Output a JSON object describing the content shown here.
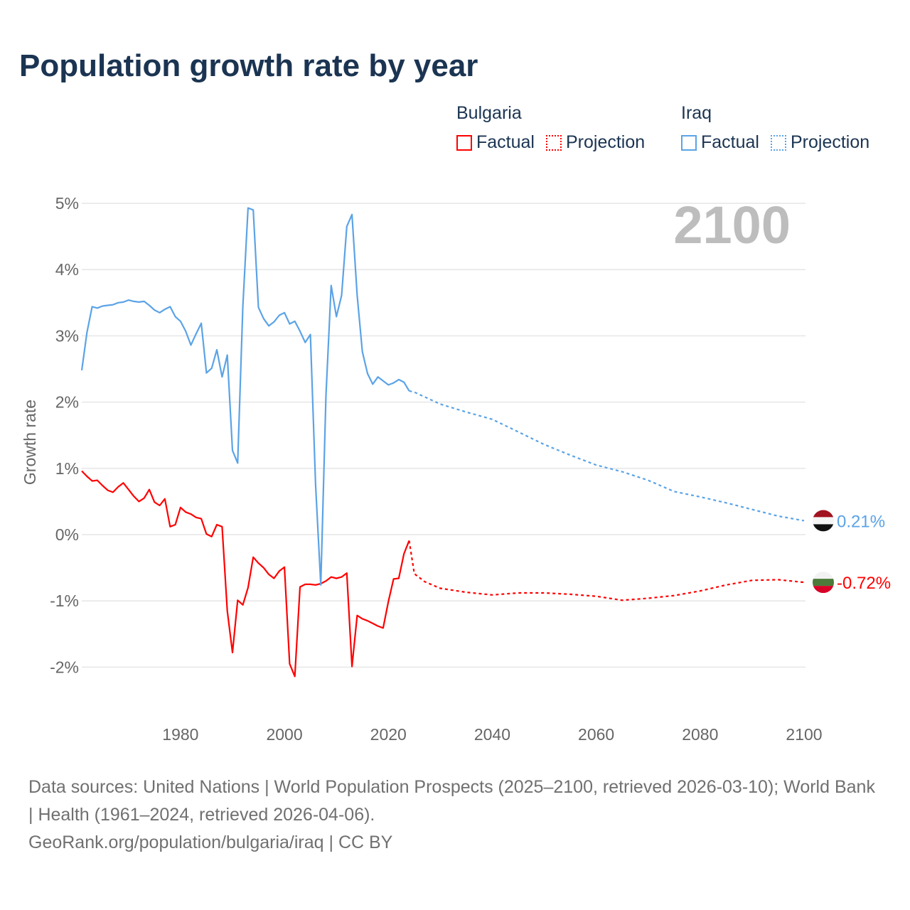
{
  "title": "Population growth rate by year",
  "legend": {
    "groups": [
      {
        "name": "Bulgaria",
        "factual": "Factual",
        "projection": "Projection",
        "color": "#ff0000"
      },
      {
        "name": "Iraq",
        "factual": "Factual",
        "projection": "Projection",
        "color": "#5ba3e6"
      }
    ]
  },
  "year_label": "2100",
  "footer": {
    "sources": "Data sources: United Nations | World Population Prospects (2025–2100, retrieved 2026-03-10); World Bank | Health (1961–2024, retrieved 2026-04-06).",
    "credit": "GeoRank.org/population/bulgaria/iraq | CC BY"
  },
  "chart_data": {
    "type": "line",
    "title": "Population growth rate by year",
    "xlabel": "",
    "ylabel": "Growth rate",
    "xlim": [
      1961,
      2100
    ],
    "ylim": [
      -2.5,
      5.2
    ],
    "xticks": [
      1980,
      2000,
      2020,
      2040,
      2060,
      2080,
      2100
    ],
    "xtick_labels": [
      "1980",
      "2000",
      "2020",
      "2040",
      "2060",
      "2080",
      "2100"
    ],
    "yticks": [
      -2,
      -1,
      0,
      1,
      2,
      3,
      4,
      5
    ],
    "ytick_labels": [
      "-2%",
      "-1%",
      "0%",
      "1%",
      "2%",
      "3%",
      "4%",
      "5%"
    ],
    "grid": true,
    "legend_position": "top-right",
    "series": [
      {
        "name": "Bulgaria",
        "color": "#ff0000",
        "end_label": "-0.72%",
        "factual": {
          "x": [
            1961,
            1962,
            1963,
            1964,
            1965,
            1966,
            1967,
            1968,
            1969,
            1970,
            1971,
            1972,
            1973,
            1974,
            1975,
            1976,
            1977,
            1978,
            1979,
            1980,
            1981,
            1982,
            1983,
            1984,
            1985,
            1986,
            1987,
            1988,
            1989,
            1990,
            1991,
            1992,
            1993,
            1994,
            1995,
            1996,
            1997,
            1998,
            1999,
            2000,
            2001,
            2002,
            2003,
            2004,
            2005,
            2006,
            2007,
            2008,
            2009,
            2010,
            2011,
            2012,
            2013,
            2014,
            2015,
            2016,
            2017,
            2018,
            2019,
            2020,
            2021,
            2022,
            2023,
            2024
          ],
          "y": [
            0.96,
            0.88,
            0.81,
            0.82,
            0.74,
            0.67,
            0.64,
            0.72,
            0.78,
            0.68,
            0.58,
            0.5,
            0.55,
            0.68,
            0.49,
            0.44,
            0.54,
            0.12,
            0.15,
            0.41,
            0.34,
            0.31,
            0.26,
            0.24,
            0.01,
            -0.03,
            0.15,
            0.12,
            -1.15,
            -1.78,
            -0.99,
            -1.06,
            -0.8,
            -0.34,
            -0.43,
            -0.5,
            -0.6,
            -0.66,
            -0.55,
            -0.49,
            -1.95,
            -2.14,
            -0.79,
            -0.75,
            -0.75,
            -0.76,
            -0.74,
            -0.7,
            -0.64,
            -0.66,
            -0.64,
            -0.58,
            -1.99,
            -1.22,
            -1.27,
            -1.3,
            -1.34,
            -1.38,
            -1.41,
            -1.01,
            -0.67,
            -0.66,
            -0.29,
            -0.09
          ]
        },
        "projection": {
          "x": [
            2024,
            2025,
            2027,
            2030,
            2035,
            2040,
            2045,
            2050,
            2055,
            2060,
            2065,
            2070,
            2075,
            2080,
            2085,
            2090,
            2095,
            2100
          ],
          "y": [
            -0.09,
            -0.59,
            -0.71,
            -0.81,
            -0.87,
            -0.91,
            -0.88,
            -0.88,
            -0.9,
            -0.93,
            -0.99,
            -0.96,
            -0.92,
            -0.85,
            -0.76,
            -0.69,
            -0.68,
            -0.72
          ]
        }
      },
      {
        "name": "Iraq",
        "color": "#5ba3e6",
        "end_label": "0.21%",
        "factual": {
          "x": [
            1961,
            1962,
            1963,
            1964,
            1965,
            1966,
            1967,
            1968,
            1969,
            1970,
            1971,
            1972,
            1973,
            1974,
            1975,
            1976,
            1977,
            1978,
            1979,
            1980,
            1981,
            1982,
            1983,
            1984,
            1985,
            1986,
            1987,
            1988,
            1989,
            1990,
            1991,
            1992,
            1993,
            1994,
            1995,
            1996,
            1997,
            1998,
            1999,
            2000,
            2001,
            2002,
            2003,
            2004,
            2005,
            2006,
            2007,
            2008,
            2009,
            2010,
            2011,
            2012,
            2013,
            2014,
            2015,
            2016,
            2017,
            2018,
            2019,
            2020,
            2021,
            2022,
            2023,
            2024
          ],
          "y": [
            2.48,
            3.05,
            3.44,
            3.42,
            3.45,
            3.46,
            3.47,
            3.5,
            3.51,
            3.54,
            3.52,
            3.51,
            3.52,
            3.46,
            3.39,
            3.35,
            3.4,
            3.44,
            3.29,
            3.22,
            3.07,
            2.86,
            3.03,
            3.19,
            2.44,
            2.51,
            2.79,
            2.38,
            2.71,
            1.27,
            1.08,
            3.45,
            4.93,
            4.9,
            3.43,
            3.26,
            3.15,
            3.21,
            3.31,
            3.35,
            3.18,
            3.22,
            3.07,
            2.9,
            3.02,
            0.75,
            -0.76,
            2.1,
            3.76,
            3.29,
            3.61,
            4.65,
            4.83,
            3.61,
            2.76,
            2.43,
            2.27,
            2.38,
            2.32,
            2.26,
            2.29,
            2.34,
            2.3,
            2.17
          ]
        },
        "projection": {
          "x": [
            2024,
            2025,
            2030,
            2035,
            2040,
            2045,
            2050,
            2055,
            2060,
            2065,
            2070,
            2075,
            2080,
            2085,
            2090,
            2095,
            2100
          ],
          "y": [
            2.17,
            2.15,
            1.97,
            1.85,
            1.74,
            1.55,
            1.36,
            1.2,
            1.05,
            0.95,
            0.82,
            0.65,
            0.57,
            0.48,
            0.38,
            0.28,
            0.21
          ]
        }
      }
    ]
  }
}
